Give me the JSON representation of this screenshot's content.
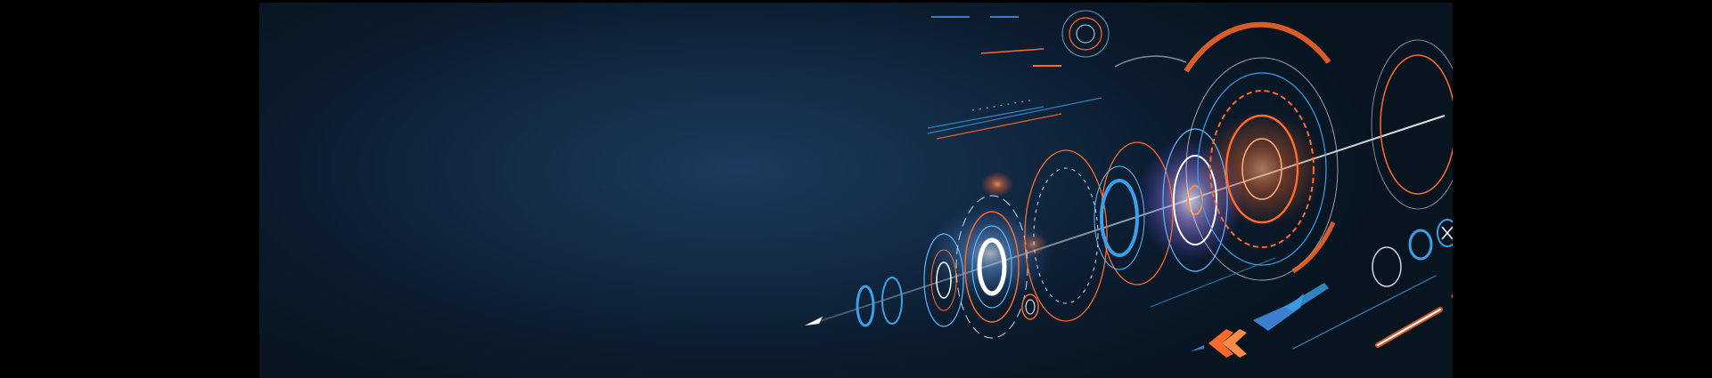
{
  "banner": {
    "colors": {
      "background": "#000000",
      "panel": "#132c47",
      "accent_orange": "#ff6a2a",
      "accent_blue": "#3aa0e8",
      "glow_purple": "#b89cff",
      "line_white": "#ffffff"
    },
    "icons": [
      "hud-ring-icon",
      "arrow-icon",
      "chevron-icon",
      "x-circle-icon",
      "equals-circle-icon",
      "target-icon"
    ]
  }
}
